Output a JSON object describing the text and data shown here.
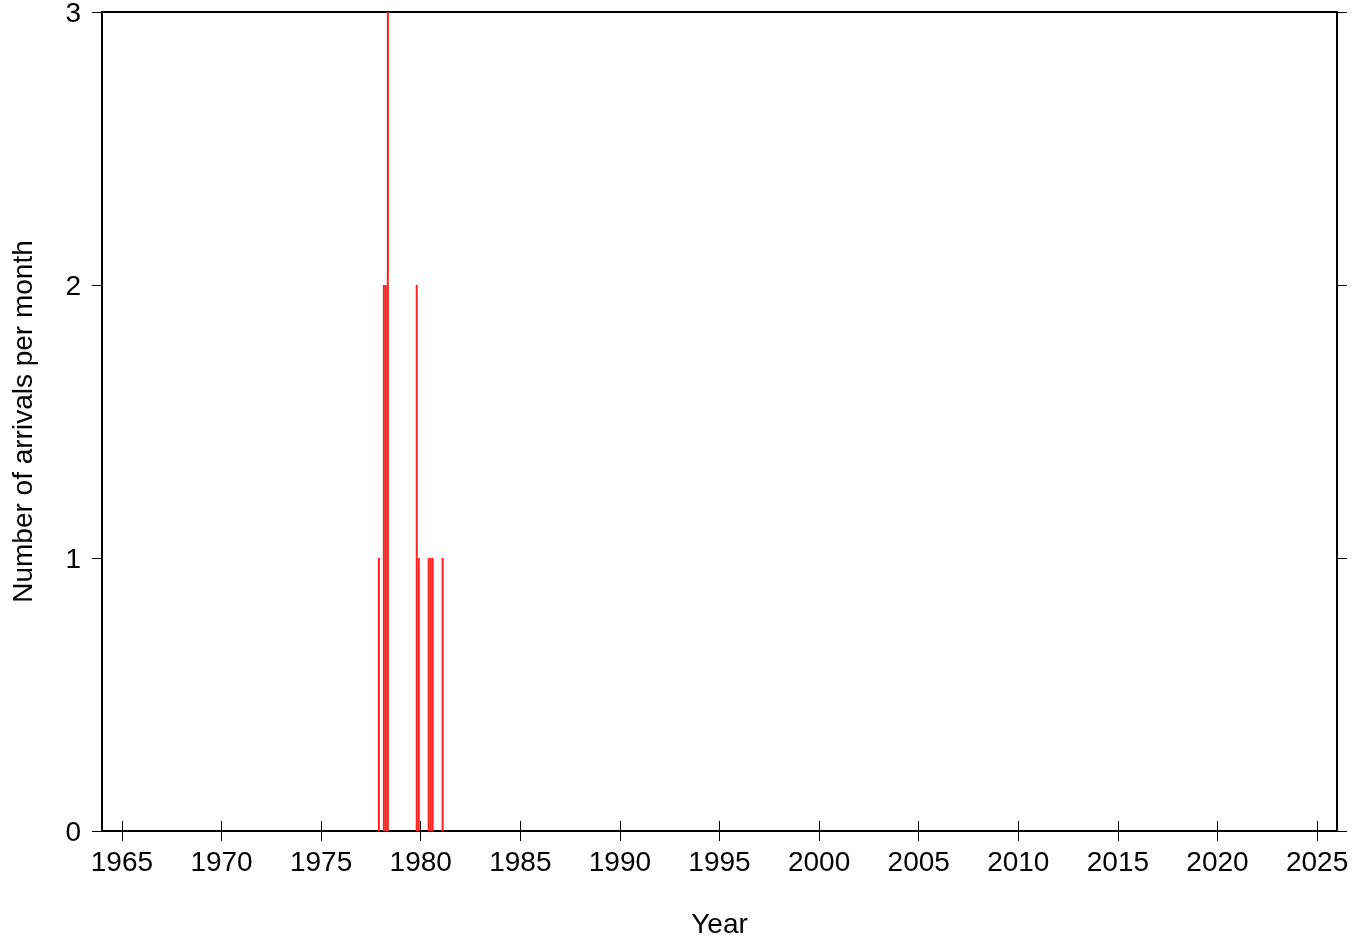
{
  "chart_data": {
    "type": "bar",
    "xlabel": "Year",
    "ylabel": "Number of arrivals per month",
    "x": [
      1977.9,
      1978.15,
      1978.25,
      1978.35,
      1979.8,
      1979.9,
      1980.4,
      1980.5,
      1980.6,
      1981.1
    ],
    "values": [
      1,
      2,
      2,
      3,
      2,
      1,
      1,
      1,
      1,
      1
    ],
    "color": "#ff2020",
    "xlim": [
      1964,
      2026
    ],
    "xticks": [
      1965,
      1970,
      1975,
      1980,
      1985,
      1990,
      1995,
      2000,
      2005,
      2010,
      2015,
      2020,
      2025
    ],
    "ylim": [
      0,
      3
    ],
    "yticks": [
      0,
      1,
      2,
      3
    ],
    "grid": false
  }
}
